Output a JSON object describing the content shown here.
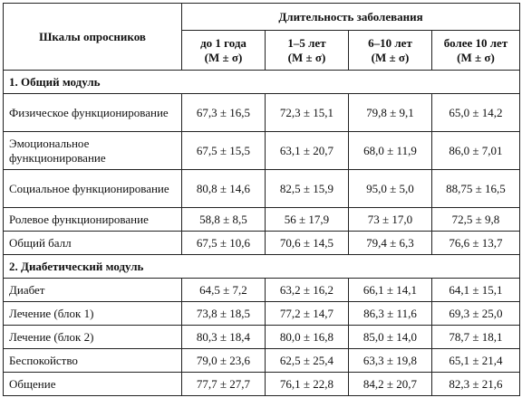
{
  "table": {
    "row_header": "Шкалы опросников",
    "group_header": "Длительность заболевания",
    "columns": [
      {
        "label": "до 1 года",
        "stat": "(M ± σ)"
      },
      {
        "label": "1–5 лет",
        "stat": "(M ± σ)"
      },
      {
        "label": "6–10 лет",
        "stat": "(M ± σ)"
      },
      {
        "label": "более 10 лет",
        "stat": "(M ± σ)"
      }
    ],
    "sections": [
      {
        "title": "1. Общий модуль",
        "rows": [
          {
            "label": "Физическое функционирование",
            "values": [
              "67,3 ± 16,5",
              "72,3 ± 15,1",
              "79,8 ± 9,1",
              "65,0 ± 14,2"
            ]
          },
          {
            "label": "Эмоциональное функционирование",
            "values": [
              "67,5 ± 15,5",
              "63,1 ± 20,7",
              "68,0 ± 11,9",
              "86,0 ± 7,01"
            ]
          },
          {
            "label": "Социальное функционирование",
            "values": [
              "80,8 ± 14,6",
              "82,5 ± 15,9",
              "95,0 ± 5,0",
              "88,75 ± 16,5"
            ]
          },
          {
            "label": "Ролевое функционирование",
            "values": [
              "58,8 ± 8,5",
              "56 ± 17,9",
              "73 ± 17,0",
              "72,5 ± 9,8"
            ]
          },
          {
            "label": "Общий балл",
            "values": [
              "67,5 ± 10,6",
              "70,6 ± 14,5",
              "79,4 ± 6,3",
              "76,6 ± 13,7"
            ]
          }
        ]
      },
      {
        "title": "2. Диабетический модуль",
        "rows": [
          {
            "label": "Диабет",
            "values": [
              "64,5 ± 7,2",
              "63,2 ± 16,2",
              "66,1 ± 14,1",
              "64,1 ± 15,1"
            ]
          },
          {
            "label": "Лечение (блок 1)",
            "values": [
              "73,8 ± 18,5",
              "77,2 ± 14,7",
              "86,3 ± 11,6",
              "69,3 ± 25,0"
            ]
          },
          {
            "label": "Лечение (блок 2)",
            "values": [
              "80,3 ± 18,4",
              "80,0 ± 16,8",
              "85,0 ± 14,0",
              "78,7 ± 18,1"
            ]
          },
          {
            "label": "Беспокойство",
            "values": [
              "79,0 ± 23,6",
              "62,5 ± 25,4",
              "63,3 ± 19,8",
              "65,1 ± 21,4"
            ]
          },
          {
            "label": "Общение",
            "values": [
              "77,7 ± 27,7",
              "76,1 ± 22,8",
              "84,2 ± 20,7",
              "82,3 ± 21,6"
            ]
          }
        ]
      }
    ]
  }
}
